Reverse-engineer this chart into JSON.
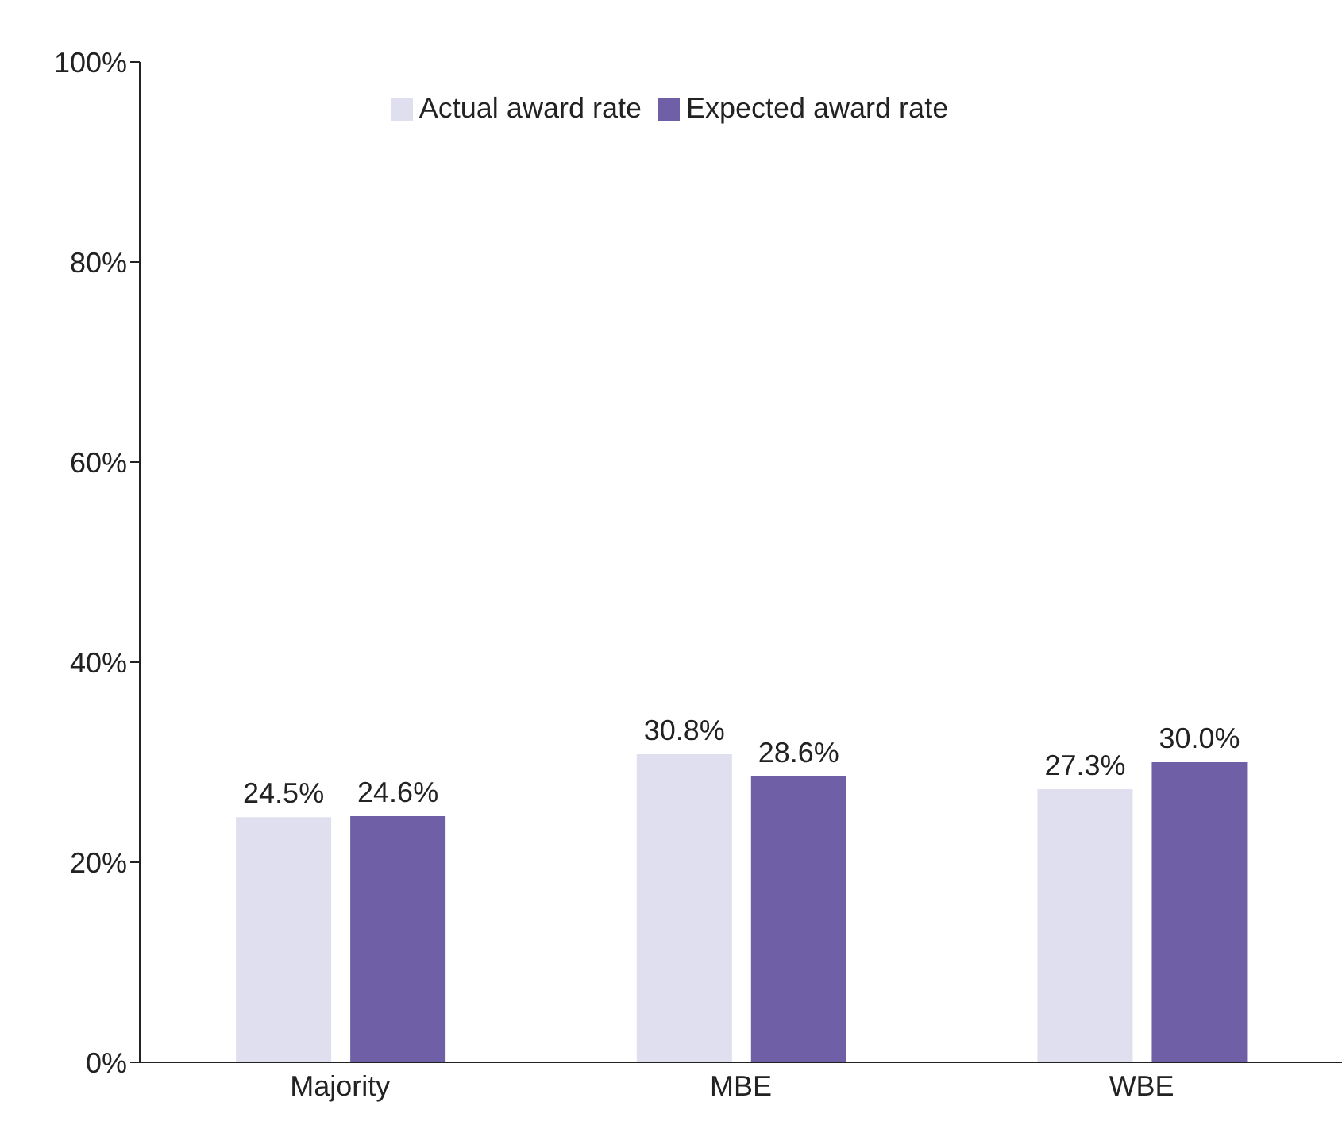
{
  "chart_data": {
    "type": "bar",
    "categories": [
      "Majority",
      "MBE",
      "WBE"
    ],
    "series": [
      {
        "name": "Actual award rate",
        "color": "#e0dff0",
        "values": [
          24.5,
          30.8,
          27.3
        ],
        "value_labels": [
          "24.5%",
          "30.8%",
          "27.3%"
        ]
      },
      {
        "name": "Expected award rate",
        "color": "#6e5fa6",
        "values": [
          24.6,
          28.6,
          30.0
        ],
        "value_labels": [
          "24.6%",
          "28.6%",
          "30.0%"
        ]
      }
    ],
    "ylim": [
      0,
      100
    ],
    "yticks": [
      {
        "value": 0,
        "label": "0%"
      },
      {
        "value": 20,
        "label": "20%"
      },
      {
        "value": 40,
        "label": "40%"
      },
      {
        "value": 60,
        "label": "60%"
      },
      {
        "value": 80,
        "label": "80%"
      },
      {
        "value": 100,
        "label": "100%"
      }
    ],
    "grid": false,
    "legend": "top"
  }
}
